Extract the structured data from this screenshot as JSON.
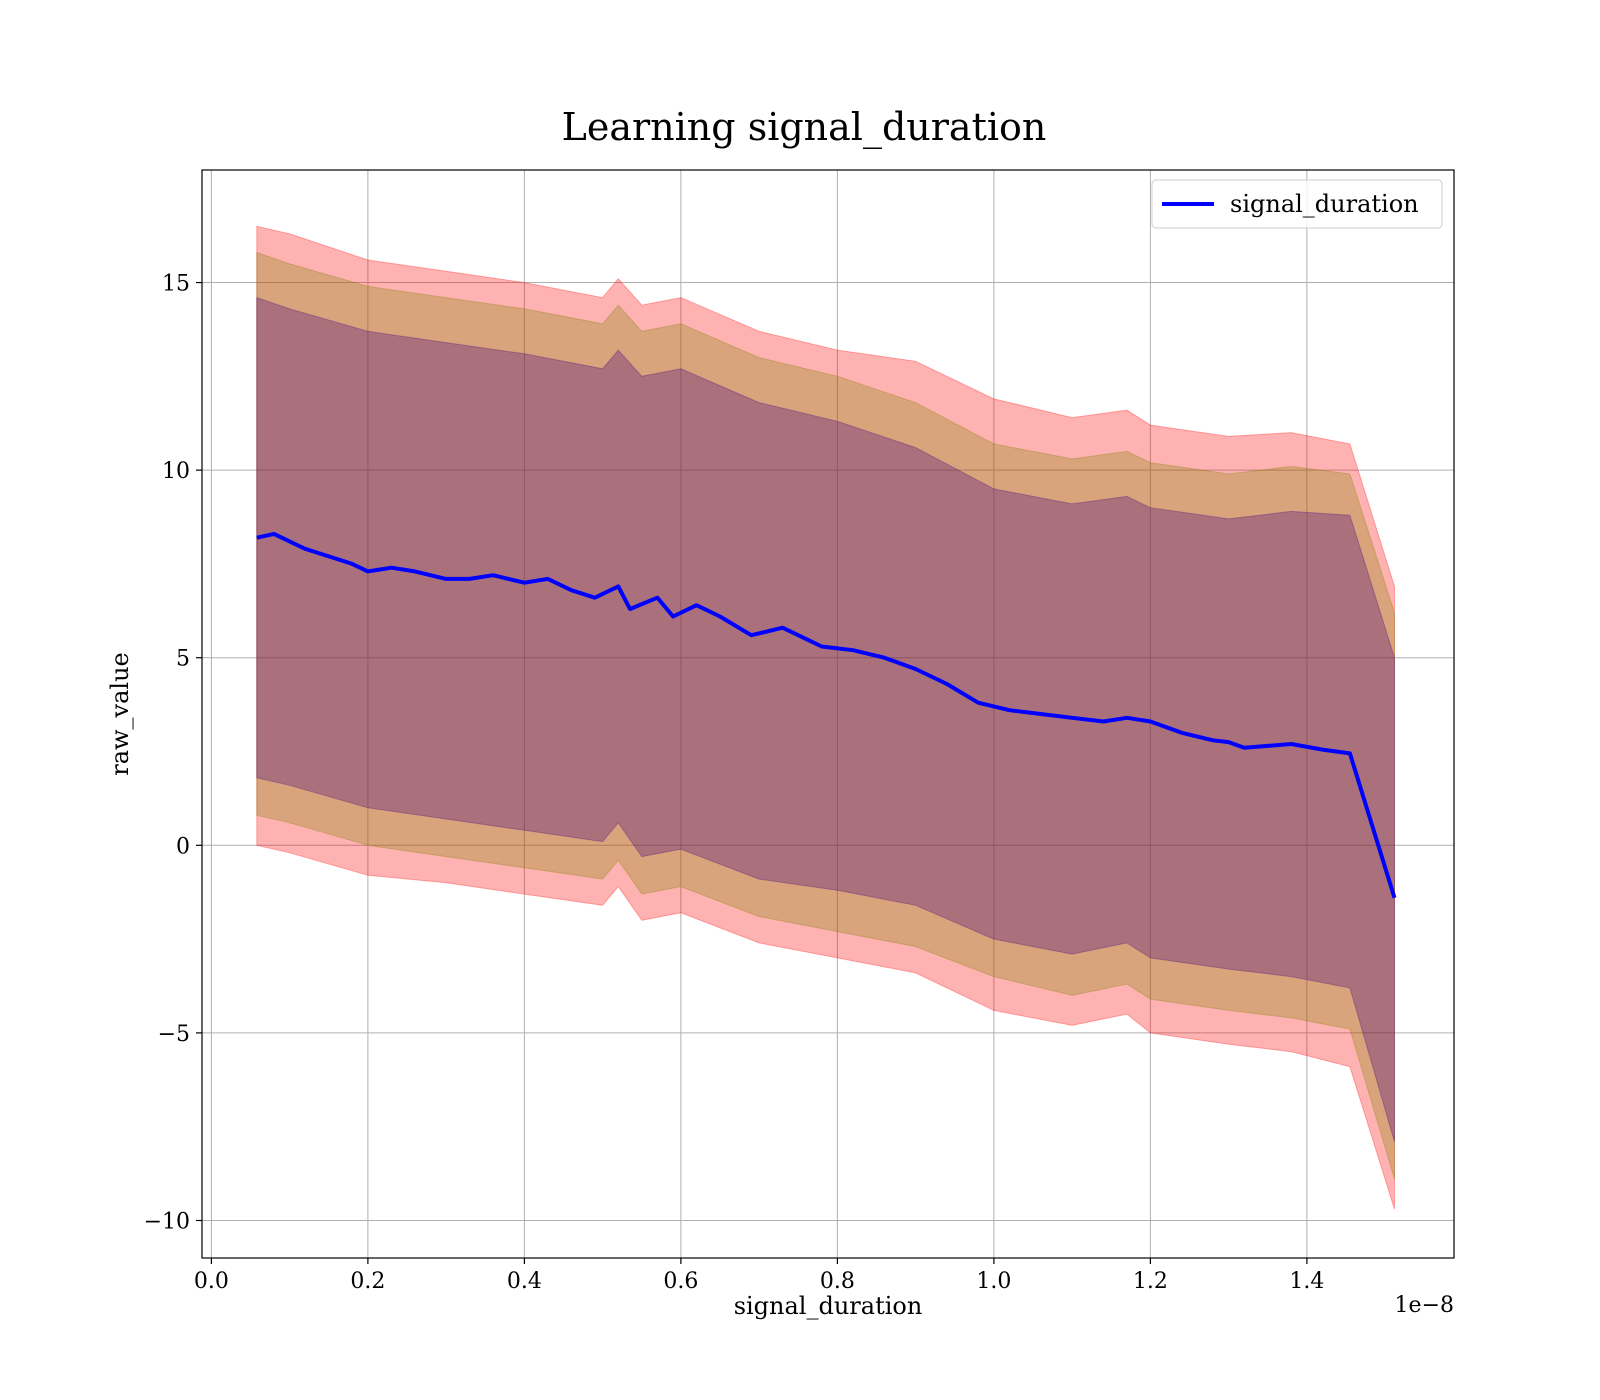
{
  "chart_data": {
    "type": "area",
    "title": "Learning signal_duration",
    "xlabel": "signal_duration",
    "ylabel": "raw_value",
    "x_multiplier_label": "1e−8",
    "xlim": [
      -0.012,
      1.588
    ],
    "ylim": [
      -11,
      18
    ],
    "x_ticks": [
      0.0,
      0.2,
      0.4,
      0.6,
      0.8,
      1.0,
      1.2,
      1.4
    ],
    "x_tick_labels": [
      "0.0",
      "0.2",
      "0.4",
      "0.6",
      "0.8",
      "1.0",
      "1.2",
      "1.4"
    ],
    "y_ticks": [
      -10,
      -5,
      0,
      5,
      10,
      15
    ],
    "y_tick_labels": [
      "−10",
      "−5",
      "0",
      "5",
      "10",
      "15"
    ],
    "grid": true,
    "legend_position": "top-right",
    "mean_series": {
      "name": "signal_duration",
      "color": "#0000ff",
      "x": [
        0.058,
        0.08,
        0.1,
        0.12,
        0.15,
        0.18,
        0.2,
        0.23,
        0.26,
        0.3,
        0.33,
        0.36,
        0.4,
        0.43,
        0.46,
        0.49,
        0.52,
        0.535,
        0.57,
        0.59,
        0.62,
        0.65,
        0.69,
        0.73,
        0.78,
        0.82,
        0.86,
        0.9,
        0.94,
        0.98,
        1.02,
        1.06,
        1.1,
        1.14,
        1.17,
        1.2,
        1.24,
        1.28,
        1.3,
        1.32,
        1.35,
        1.38,
        1.42,
        1.455,
        1.512
      ],
      "y": [
        8.2,
        8.3,
        8.1,
        7.9,
        7.7,
        7.5,
        7.3,
        7.4,
        7.3,
        7.1,
        7.1,
        7.2,
        7.0,
        7.1,
        6.8,
        6.6,
        6.9,
        6.3,
        6.6,
        6.1,
        6.4,
        6.1,
        5.6,
        5.8,
        5.3,
        5.2,
        5.0,
        4.7,
        4.3,
        3.8,
        3.6,
        3.5,
        3.4,
        3.3,
        3.4,
        3.3,
        3.0,
        2.8,
        2.75,
        2.6,
        2.65,
        2.7,
        2.55,
        2.45,
        -1.4
      ]
    },
    "bands": [
      {
        "level": "outer",
        "fill": "#ff0000",
        "opacity": 0.3,
        "x": [
          0.058,
          0.1,
          0.2,
          0.3,
          0.4,
          0.5,
          0.52,
          0.55,
          0.6,
          0.7,
          0.8,
          0.9,
          1.0,
          1.1,
          1.17,
          1.2,
          1.3,
          1.38,
          1.455,
          1.512
        ],
        "upper": [
          16.5,
          16.3,
          15.6,
          15.3,
          15.0,
          14.6,
          15.1,
          14.4,
          14.6,
          13.7,
          13.2,
          12.9,
          11.9,
          11.4,
          11.6,
          11.2,
          10.9,
          11.0,
          10.7,
          6.9
        ],
        "lower": [
          0.0,
          -0.2,
          -0.8,
          -1.0,
          -1.3,
          -1.6,
          -1.1,
          -2.0,
          -1.8,
          -2.6,
          -3.0,
          -3.4,
          -4.4,
          -4.8,
          -4.5,
          -5.0,
          -5.3,
          -5.5,
          -5.9,
          -9.7
        ]
      },
      {
        "level": "middle",
        "fill": "#808000",
        "opacity": 0.3,
        "x": [
          0.058,
          0.1,
          0.2,
          0.3,
          0.4,
          0.5,
          0.52,
          0.55,
          0.6,
          0.7,
          0.8,
          0.9,
          1.0,
          1.1,
          1.17,
          1.2,
          1.3,
          1.38,
          1.455,
          1.512
        ],
        "upper": [
          15.8,
          15.5,
          14.9,
          14.6,
          14.3,
          13.9,
          14.4,
          13.7,
          13.9,
          13.0,
          12.5,
          11.8,
          10.7,
          10.3,
          10.5,
          10.2,
          9.9,
          10.1,
          9.9,
          6.2
        ],
        "lower": [
          0.8,
          0.6,
          0.0,
          -0.3,
          -0.6,
          -0.9,
          -0.4,
          -1.3,
          -1.1,
          -1.9,
          -2.3,
          -2.7,
          -3.5,
          -4.0,
          -3.7,
          -4.1,
          -4.4,
          -4.6,
          -4.9,
          -8.9
        ]
      },
      {
        "level": "inner",
        "fill": "#400080",
        "opacity": 0.3,
        "x": [
          0.058,
          0.1,
          0.2,
          0.3,
          0.4,
          0.5,
          0.52,
          0.55,
          0.6,
          0.7,
          0.8,
          0.9,
          1.0,
          1.1,
          1.17,
          1.2,
          1.3,
          1.38,
          1.455,
          1.512
        ],
        "upper": [
          14.6,
          14.3,
          13.7,
          13.4,
          13.1,
          12.7,
          13.2,
          12.5,
          12.7,
          11.8,
          11.3,
          10.6,
          9.5,
          9.1,
          9.3,
          9.0,
          8.7,
          8.9,
          8.8,
          5.0
        ],
        "lower": [
          1.8,
          1.6,
          1.0,
          0.7,
          0.4,
          0.1,
          0.6,
          -0.3,
          -0.1,
          -0.9,
          -1.2,
          -1.6,
          -2.5,
          -2.9,
          -2.6,
          -3.0,
          -3.3,
          -3.5,
          -3.8,
          -7.9
        ]
      }
    ]
  }
}
